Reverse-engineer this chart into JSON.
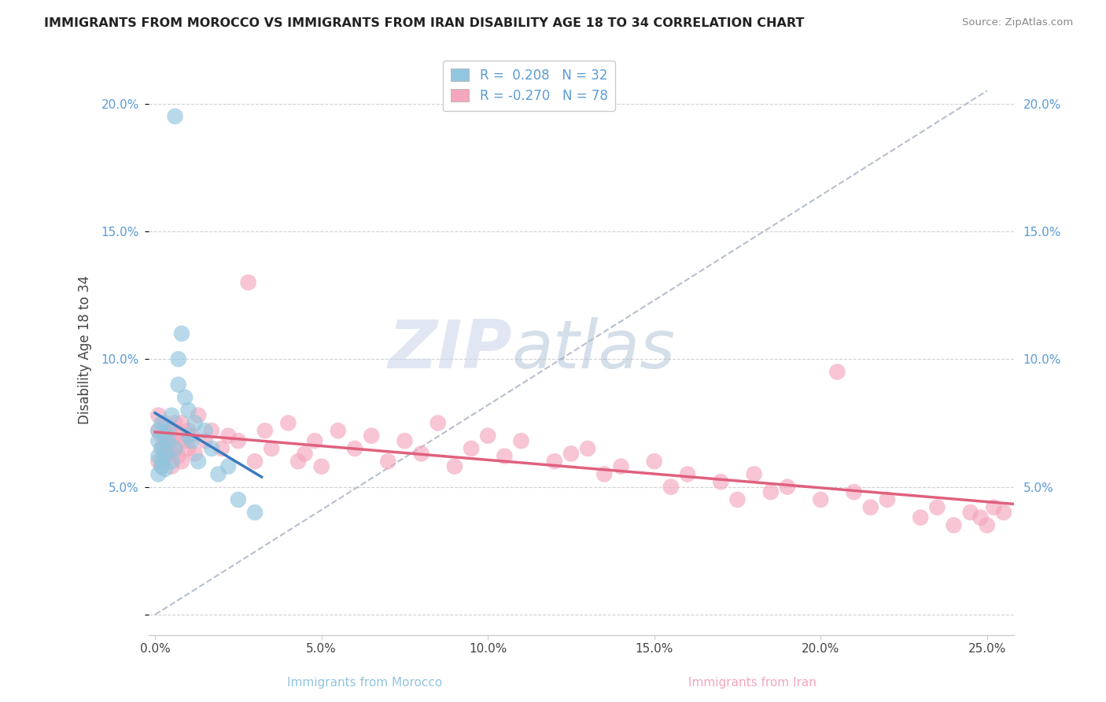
{
  "title": "IMMIGRANTS FROM MOROCCO VS IMMIGRANTS FROM IRAN DISABILITY AGE 18 TO 34 CORRELATION CHART",
  "source": "Source: ZipAtlas.com",
  "xlabel_morocco": "Immigrants from Morocco",
  "xlabel_iran": "Immigrants from Iran",
  "ylabel": "Disability Age 18 to 34",
  "xlim": [
    -0.002,
    0.258
  ],
  "ylim": [
    -0.008,
    0.215
  ],
  "xtick_vals": [
    0.0,
    0.05,
    0.1,
    0.15,
    0.2,
    0.25
  ],
  "xticklabels": [
    "0.0%",
    "5.0%",
    "10.0%",
    "15.0%",
    "20.0%",
    "25.0%"
  ],
  "ytick_vals": [
    0.0,
    0.05,
    0.1,
    0.15,
    0.2
  ],
  "yticklabels": [
    "",
    "5.0%",
    "10.0%",
    "15.0%",
    "20.0%"
  ],
  "legend_line1": "R =  0.208   N = 32",
  "legend_line2": "R = -0.270   N = 78",
  "morocco_color": "#92c5de",
  "iran_color": "#f4a6bc",
  "morocco_line_color": "#3a7abf",
  "iran_line_color": "#e0607e",
  "diagonal_color": "#b0b8c8",
  "tick_color": "#5b9bd5",
  "watermark_color": "#d0dae8",
  "morocco_x": [
    0.001,
    0.001,
    0.001,
    0.001,
    0.002,
    0.002,
    0.002,
    0.002,
    0.003,
    0.003,
    0.003,
    0.004,
    0.004,
    0.005,
    0.005,
    0.006,
    0.006,
    0.007,
    0.007,
    0.008,
    0.009,
    0.01,
    0.01,
    0.011,
    0.012,
    0.013,
    0.015,
    0.017,
    0.019,
    0.022,
    0.025,
    0.03
  ],
  "morocco_y": [
    0.062,
    0.055,
    0.068,
    0.072,
    0.058,
    0.065,
    0.06,
    0.075,
    0.063,
    0.057,
    0.07,
    0.068,
    0.073,
    0.06,
    0.078,
    0.065,
    0.195,
    0.09,
    0.1,
    0.11,
    0.085,
    0.07,
    0.08,
    0.068,
    0.075,
    0.06,
    0.072,
    0.065,
    0.055,
    0.058,
    0.045,
    0.04
  ],
  "iran_x": [
    0.001,
    0.001,
    0.001,
    0.002,
    0.002,
    0.002,
    0.003,
    0.003,
    0.003,
    0.004,
    0.004,
    0.005,
    0.005,
    0.005,
    0.006,
    0.006,
    0.007,
    0.007,
    0.008,
    0.008,
    0.009,
    0.01,
    0.01,
    0.011,
    0.012,
    0.013,
    0.015,
    0.017,
    0.02,
    0.022,
    0.025,
    0.028,
    0.03,
    0.033,
    0.035,
    0.04,
    0.043,
    0.045,
    0.048,
    0.05,
    0.055,
    0.06,
    0.065,
    0.07,
    0.075,
    0.08,
    0.085,
    0.09,
    0.095,
    0.1,
    0.105,
    0.11,
    0.12,
    0.125,
    0.13,
    0.135,
    0.14,
    0.15,
    0.155,
    0.16,
    0.17,
    0.175,
    0.18,
    0.185,
    0.19,
    0.2,
    0.205,
    0.21,
    0.215,
    0.22,
    0.23,
    0.235,
    0.24,
    0.245,
    0.248,
    0.25,
    0.252,
    0.255
  ],
  "iran_y": [
    0.072,
    0.06,
    0.078,
    0.065,
    0.07,
    0.058,
    0.075,
    0.062,
    0.068,
    0.07,
    0.063,
    0.068,
    0.072,
    0.058,
    0.075,
    0.065,
    0.07,
    0.062,
    0.06,
    0.075,
    0.068,
    0.072,
    0.065,
    0.07,
    0.063,
    0.078,
    0.068,
    0.072,
    0.065,
    0.07,
    0.068,
    0.13,
    0.06,
    0.072,
    0.065,
    0.075,
    0.06,
    0.063,
    0.068,
    0.058,
    0.072,
    0.065,
    0.07,
    0.06,
    0.068,
    0.063,
    0.075,
    0.058,
    0.065,
    0.07,
    0.062,
    0.068,
    0.06,
    0.063,
    0.065,
    0.055,
    0.058,
    0.06,
    0.05,
    0.055,
    0.052,
    0.045,
    0.055,
    0.048,
    0.05,
    0.045,
    0.095,
    0.048,
    0.042,
    0.045,
    0.038,
    0.042,
    0.035,
    0.04,
    0.038,
    0.035,
    0.042,
    0.04
  ]
}
